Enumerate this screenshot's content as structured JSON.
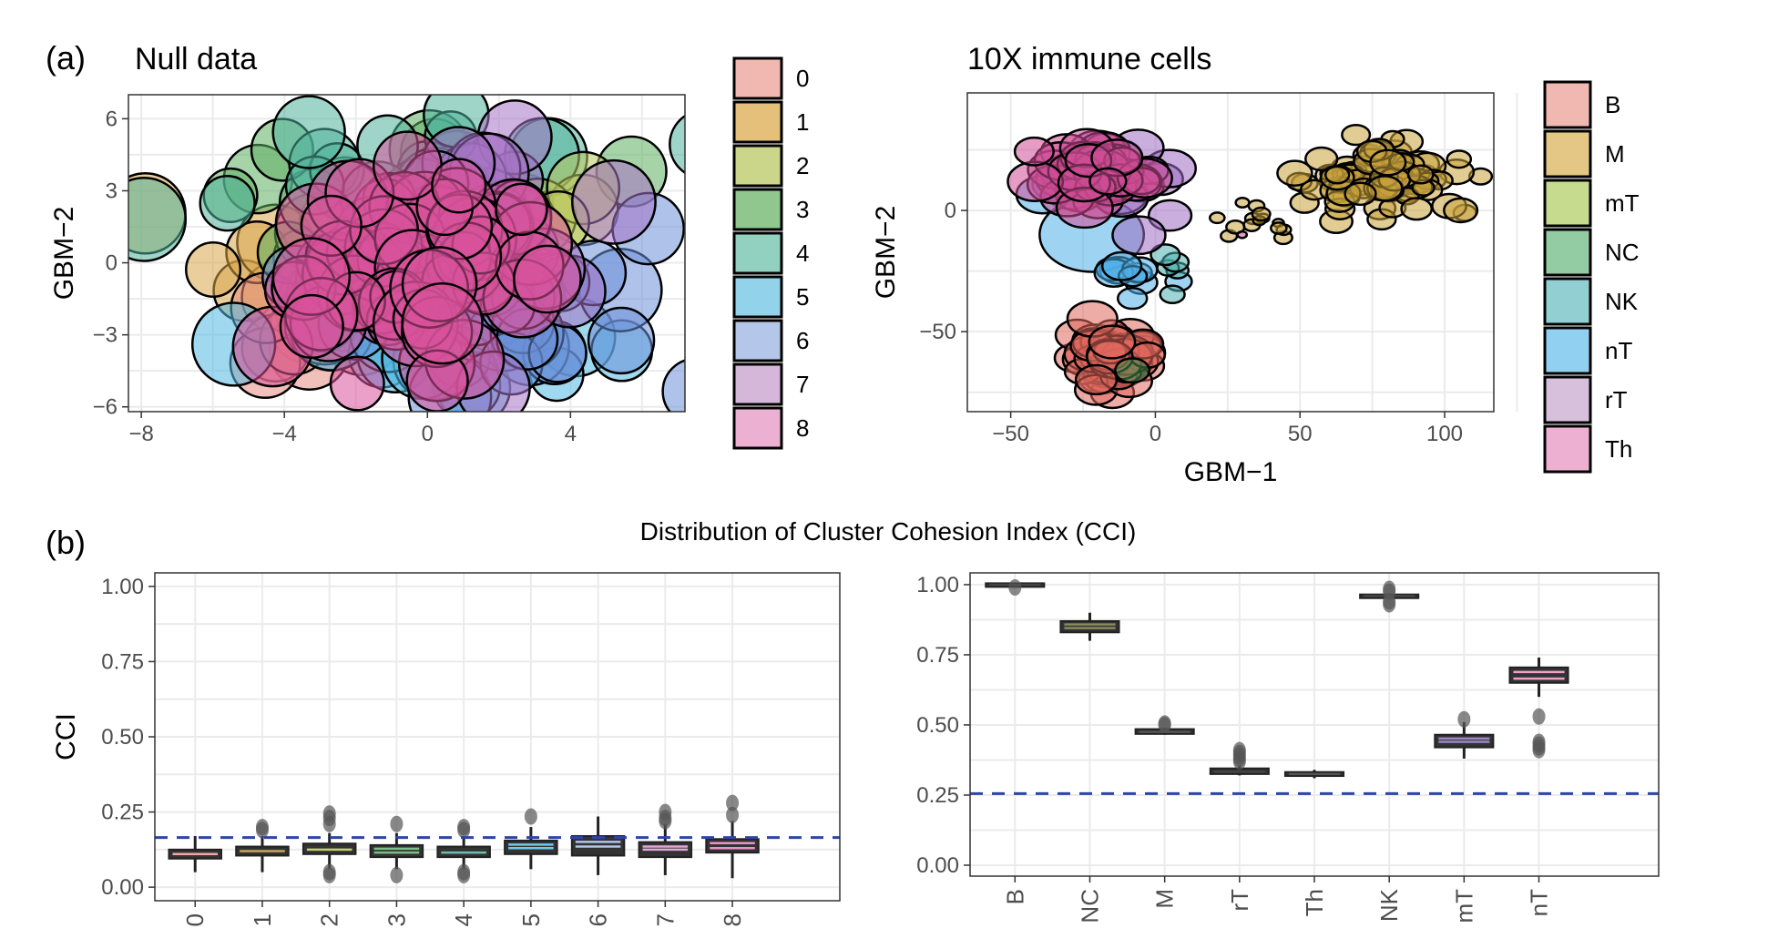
{
  "panel_labels": {
    "a": "(a)",
    "b": "(b)"
  },
  "section_b_title": "Distribution of Cluster Cohesion Index (CCI)",
  "chart_data": [
    {
      "id": "null-scatter",
      "type": "scatter",
      "title": "Null data",
      "xlabel": "",
      "ylabel": "GBM−2",
      "xlim": [
        -8.36,
        7.2
      ],
      "ylim": [
        -6.2,
        7.0
      ],
      "xticks": [
        -8,
        -4,
        0,
        4
      ],
      "xtick_labels": [
        "−8",
        "−4",
        "0",
        "4"
      ],
      "yticks": [
        6,
        3,
        0,
        -3,
        -6
      ],
      "ytick_labels": [
        "6",
        "3",
        "0",
        "−3",
        "−6"
      ],
      "grid": true,
      "legend_position": "right",
      "legend": [
        {
          "label": "0",
          "color": "#F1B8B2",
          "point_color": "#E88C82"
        },
        {
          "label": "1",
          "color": "#E4C07A",
          "point_color": "#D9A64A"
        },
        {
          "label": "2",
          "color": "#CBD68A",
          "point_color": "#B9C95E"
        },
        {
          "label": "3",
          "color": "#8FC78F",
          "point_color": "#5FAF62"
        },
        {
          "label": "4",
          "color": "#92D0C0",
          "point_color": "#4FB39A"
        },
        {
          "label": "5",
          "color": "#92D2EA",
          "point_color": "#52B8E2"
        },
        {
          "label": "6",
          "color": "#B4C6EA",
          "point_color": "#6C8FD9"
        },
        {
          "label": "7",
          "color": "#D5B7D9",
          "point_color": "#A673C4"
        },
        {
          "label": "8",
          "color": "#EBB0D2",
          "point_color": "#D9529A"
        }
      ],
      "clusters": [
        {
          "group": 1,
          "cx": -3.8,
          "cy": 0.3,
          "sx": 1.0,
          "sy": 1.2,
          "r": 0.95,
          "n": 10
        },
        {
          "group": 0,
          "cx": -3.0,
          "cy": -3.0,
          "sx": 1.0,
          "sy": 0.7,
          "r": 0.95,
          "n": 14
        },
        {
          "group": 3,
          "cx": 1.0,
          "cy": 2.5,
          "sx": 3.0,
          "sy": 2.2,
          "r": 0.95,
          "n": 18
        },
        {
          "group": 4,
          "cx": -0.5,
          "cy": 3.3,
          "sx": 2.6,
          "sy": 1.4,
          "r": 0.95,
          "n": 16
        },
        {
          "group": 2,
          "cx": 4.5,
          "cy": 2.0,
          "sx": 0.8,
          "sy": 0.8,
          "r": 0.95,
          "n": 4
        },
        {
          "group": 5,
          "cx": 0.5,
          "cy": -3.5,
          "sx": 2.5,
          "sy": 0.8,
          "r": 0.95,
          "n": 16
        },
        {
          "group": 6,
          "cx": 2.2,
          "cy": -2.0,
          "sx": 2.4,
          "sy": 1.6,
          "r": 0.95,
          "n": 26
        },
        {
          "group": 7,
          "cx": 1.5,
          "cy": 1.5,
          "sx": 2.0,
          "sy": 2.4,
          "r": 0.95,
          "n": 30
        },
        {
          "group": 8,
          "cx": -0.6,
          "cy": 0.0,
          "sx": 2.0,
          "sy": 2.0,
          "r": 0.95,
          "n": 70
        }
      ]
    },
    {
      "id": "immune-scatter",
      "type": "scatter",
      "title": "10X immune cells",
      "xlabel": "GBM−1",
      "ylabel": "GBM−2",
      "xlim": [
        -65,
        117
      ],
      "ylim": [
        -83,
        48.5
      ],
      "xticks": [
        -50,
        0,
        50,
        100
      ],
      "xtick_labels": [
        "−50",
        "0",
        "50",
        "100"
      ],
      "yticks": [
        0,
        -50
      ],
      "ytick_labels": [
        "0",
        "−50"
      ],
      "grid": true,
      "legend_position": "right",
      "legend": [
        {
          "label": "B",
          "color": "#F1B8B2",
          "point_color": "#E0685C"
        },
        {
          "label": "M",
          "color": "#E4C784",
          "point_color": "#C8A23C"
        },
        {
          "label": "mT",
          "color": "#C6DB8E",
          "point_color": "#A9C95E"
        },
        {
          "label": "NC",
          "color": "#93CBA2",
          "point_color": "#3F8F4E"
        },
        {
          "label": "NK",
          "color": "#92CFD3",
          "point_color": "#4FB3B0"
        },
        {
          "label": "nT",
          "color": "#92D0F2",
          "point_color": "#4FAEE8"
        },
        {
          "label": "rT",
          "color": "#D6C0DC",
          "point_color": "#9C6CC2"
        },
        {
          "label": "Th",
          "color": "#EDB0D2",
          "point_color": "#D04C96"
        }
      ],
      "clusters": [
        {
          "group": 5,
          "cx": -22,
          "cy": -10,
          "sx": 1,
          "sy": 1,
          "r": 24,
          "n": 1
        },
        {
          "group": 5,
          "cx": -30,
          "cy": 15,
          "sx": 8,
          "sy": 6,
          "r": 8,
          "n": 10
        },
        {
          "group": 5,
          "cx": -8,
          "cy": -25,
          "sx": 6,
          "sy": 6,
          "r": 6,
          "n": 10
        },
        {
          "group": 4,
          "cx": 5,
          "cy": -25,
          "sx": 4,
          "sy": 5,
          "r": 5,
          "n": 5
        },
        {
          "group": 6,
          "cx": -12,
          "cy": 10,
          "sx": 10,
          "sy": 8,
          "r": 8,
          "n": 14
        },
        {
          "group": 7,
          "cx": -22,
          "cy": 17,
          "sx": 8,
          "sy": 6,
          "r": 8,
          "n": 40
        },
        {
          "group": 1,
          "cx": 78,
          "cy": 12,
          "sx": 14,
          "sy": 7,
          "r": 5,
          "n": 80
        },
        {
          "group": 1,
          "cx": 35,
          "cy": -5,
          "sx": 8,
          "sy": 3,
          "r": 2.5,
          "n": 14
        },
        {
          "group": 0,
          "cx": -15,
          "cy": -62,
          "sx": 7,
          "sy": 7,
          "r": 7,
          "n": 60
        },
        {
          "group": 3,
          "cx": -8,
          "cy": -66,
          "sx": 0.5,
          "sy": 0.5,
          "r": 6,
          "n": 1
        },
        {
          "group": 7,
          "cx": 30,
          "cy": -10,
          "sx": 0.3,
          "sy": 0.3,
          "r": 2,
          "n": 1
        }
      ]
    },
    {
      "id": "null-cci-box",
      "type": "box",
      "title": "",
      "xlabel": "",
      "ylabel": "CCI",
      "ylim": [
        -0.045,
        1.045
      ],
      "yticks": [
        1.0,
        0.75,
        0.5,
        0.25,
        0.0
      ],
      "ytick_labels": [
        "1.00",
        "0.75",
        "0.50",
        "0.25",
        "0.00"
      ],
      "threshold": 0.165,
      "categories": [
        "0",
        "1",
        "2",
        "3",
        "4",
        "5",
        "6",
        "7",
        "8"
      ],
      "colors": [
        "#F1A8A2",
        "#C8A860",
        "#C4D070",
        "#7DC08A",
        "#6FBFB0",
        "#6ECBEA",
        "#B4C6EA",
        "#E0A8D8",
        "#F090C8"
      ],
      "boxes": [
        {
          "min": 0.05,
          "q1": 0.095,
          "median": 0.11,
          "q3": 0.125,
          "max": 0.17,
          "outliers": []
        },
        {
          "min": 0.05,
          "q1": 0.105,
          "median": 0.12,
          "q3": 0.135,
          "max": 0.17,
          "outliers": [
            0.19,
            0.2
          ]
        },
        {
          "min": 0.06,
          "q1": 0.11,
          "median": 0.125,
          "q3": 0.145,
          "max": 0.18,
          "outliers": [
            0.21,
            0.23,
            0.245,
            0.04,
            0.05
          ]
        },
        {
          "min": 0.06,
          "q1": 0.1,
          "median": 0.115,
          "q3": 0.14,
          "max": 0.18,
          "outliers": [
            0.21,
            0.04
          ]
        },
        {
          "min": 0.06,
          "q1": 0.1,
          "median": 0.115,
          "q3": 0.135,
          "max": 0.17,
          "outliers": [
            0.19,
            0.2,
            0.04,
            0.05
          ]
        },
        {
          "min": 0.06,
          "q1": 0.11,
          "median": 0.13,
          "q3": 0.155,
          "max": 0.2,
          "outliers": [
            0.235
          ]
        },
        {
          "min": 0.04,
          "q1": 0.105,
          "median": 0.135,
          "q3": 0.17,
          "max": 0.235,
          "outliers": []
        },
        {
          "min": 0.04,
          "q1": 0.1,
          "median": 0.125,
          "q3": 0.15,
          "max": 0.21,
          "outliers": [
            0.22,
            0.23,
            0.25
          ]
        },
        {
          "min": 0.03,
          "q1": 0.115,
          "median": 0.13,
          "q3": 0.16,
          "max": 0.22,
          "outliers": [
            0.24,
            0.28
          ]
        }
      ]
    },
    {
      "id": "immune-cci-box",
      "type": "box",
      "title": "",
      "xlabel": "",
      "ylabel": "",
      "ylim": [
        -0.039,
        1.042
      ],
      "yticks": [
        1.0,
        0.75,
        0.5,
        0.25,
        0.0
      ],
      "ytick_labels": [
        "1.00",
        "0.75",
        "0.50",
        "0.25",
        "0.00"
      ],
      "threshold": 0.255,
      "categories": [
        "B",
        "NC",
        "M",
        "rT",
        "Th",
        "NK",
        "mT",
        "nT"
      ],
      "colors": [
        "#444444",
        "#8A8A60",
        "#555555",
        "#444444",
        "#555555",
        "#444444",
        "#9E86C8",
        "#F0A0D0"
      ],
      "boxes": [
        {
          "min": 0.99,
          "q1": 0.995,
          "median": 1.0,
          "q3": 1.005,
          "max": 1.005,
          "outliers": [
            0.99
          ]
        },
        {
          "min": 0.8,
          "q1": 0.83,
          "median": 0.845,
          "q3": 0.87,
          "max": 0.9,
          "outliers": []
        },
        {
          "min": 0.465,
          "q1": 0.468,
          "median": 0.475,
          "q3": 0.485,
          "max": 0.49,
          "outliers": [
            0.5,
            0.505
          ]
        },
        {
          "min": 0.32,
          "q1": 0.325,
          "median": 0.333,
          "q3": 0.345,
          "max": 0.355,
          "outliers": [
            0.37,
            0.38,
            0.39,
            0.4,
            0.41
          ]
        },
        {
          "min": 0.31,
          "q1": 0.318,
          "median": 0.325,
          "q3": 0.332,
          "max": 0.34,
          "outliers": []
        },
        {
          "min": 0.95,
          "q1": 0.952,
          "median": 0.96,
          "q3": 0.965,
          "max": 0.97,
          "outliers": [
            0.93,
            0.94,
            0.975,
            0.985
          ]
        },
        {
          "min": 0.38,
          "q1": 0.42,
          "median": 0.44,
          "q3": 0.465,
          "max": 0.51,
          "outliers": [
            0.52
          ]
        },
        {
          "min": 0.6,
          "q1": 0.65,
          "median": 0.665,
          "q3": 0.705,
          "max": 0.74,
          "outliers": [
            0.53,
            0.41,
            0.42,
            0.43,
            0.44
          ]
        }
      ]
    }
  ]
}
